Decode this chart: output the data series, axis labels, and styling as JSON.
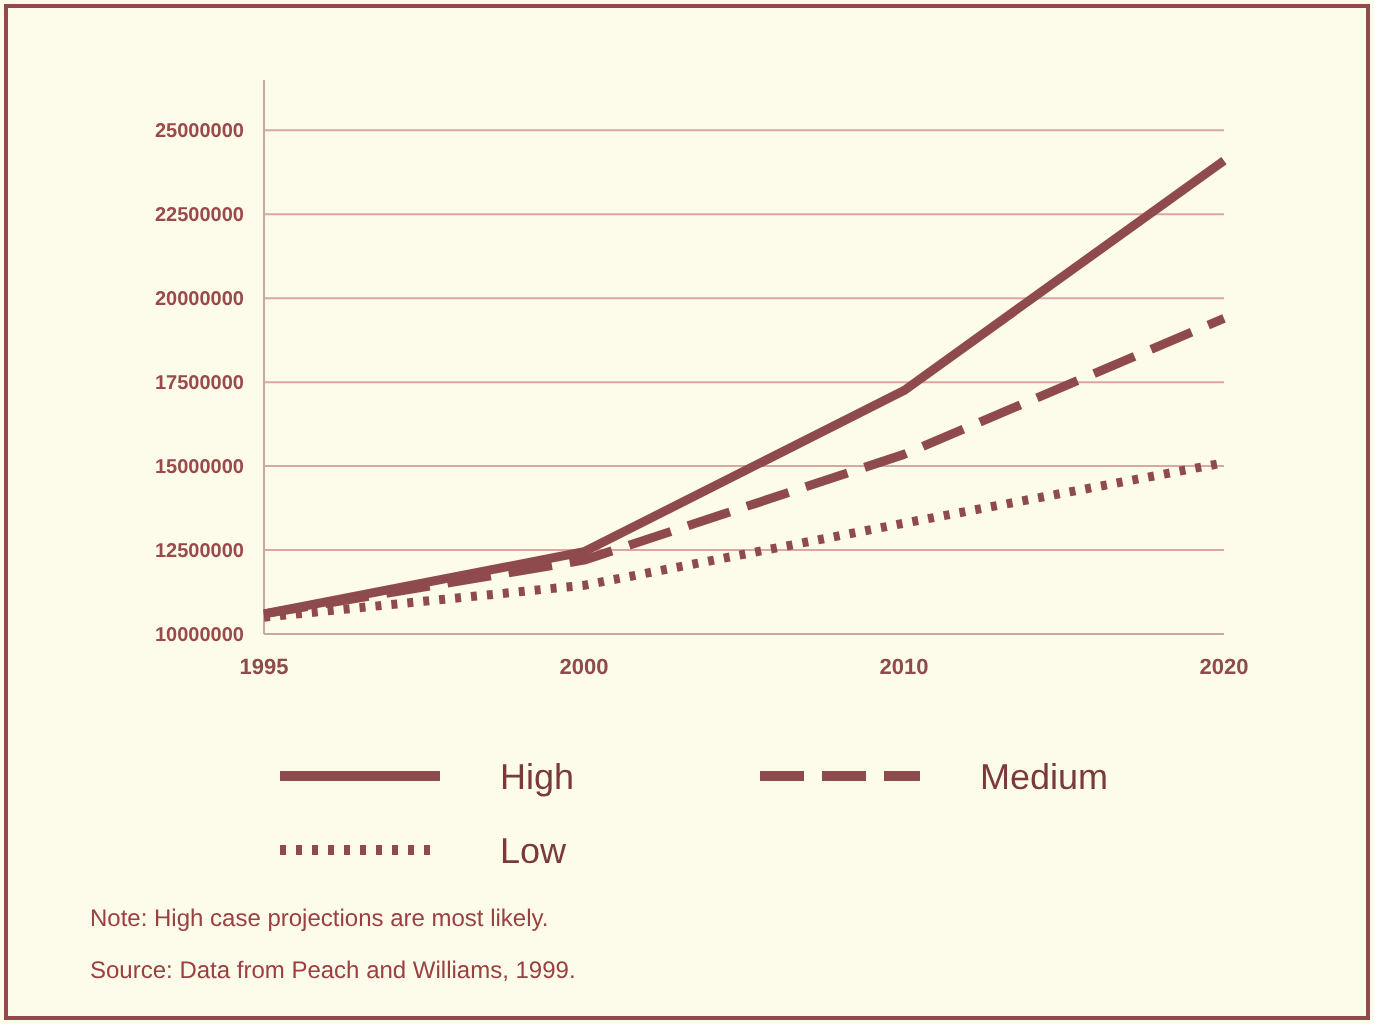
{
  "chart_data": {
    "type": "line",
    "categories": [
      "1995",
      "2000",
      "2010",
      "2020"
    ],
    "series": [
      {
        "name": "High",
        "color": "#8e4a4c",
        "line_style": "solid",
        "values": [
          10600000,
          12450000,
          17250000,
          24100000
        ]
      },
      {
        "name": "Medium",
        "color": "#8e4a4c",
        "line_style": "dashed",
        "values": [
          10600000,
          12200000,
          15350000,
          19400000
        ]
      },
      {
        "name": "Low",
        "color": "#8e4a4c",
        "line_style": "dotted",
        "values": [
          10500000,
          11450000,
          13300000,
          15100000
        ]
      }
    ],
    "ylim": [
      10000000,
      26500000
    ],
    "yticks": [
      10000000,
      12500000,
      15000000,
      17500000,
      20000000,
      22500000,
      25000000
    ],
    "grid": "y",
    "legend": "bottom",
    "annotations": [
      "Note: High case projections are most likely.",
      "Source: Data from Peach and Williams, 1999."
    ]
  }
}
